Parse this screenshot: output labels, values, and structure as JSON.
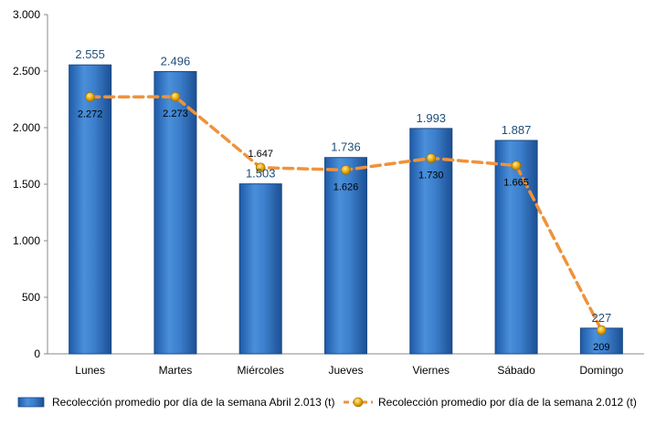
{
  "chart_data": {
    "type": "bar",
    "categories": [
      "Lunes",
      "Martes",
      "Miércoles",
      "Jueves",
      "Viernes",
      "Sábado",
      "Domingo"
    ],
    "series": [
      {
        "name": "Recolección promedio por día de la semana Abril 2.013 (t)",
        "type": "bar",
        "values": [
          2555,
          2496,
          1503,
          1736,
          1993,
          1887,
          227
        ],
        "labels": [
          "2.555",
          "2.496",
          "1.503",
          "1.736",
          "1.993",
          "1.887",
          "227"
        ],
        "color": "#2E75B6"
      },
      {
        "name": "Recolección promedio por día de la semana 2.012 (t)",
        "type": "line",
        "values": [
          2272,
          2273,
          1647,
          1626,
          1730,
          1665,
          209
        ],
        "labels": [
          "2.272",
          "2.273",
          "1.647",
          "1.626",
          "1.730",
          "1.665",
          "209"
        ],
        "color": "#F0923A",
        "marker_color": "#F4B400"
      }
    ],
    "ylim": [
      0,
      3000
    ],
    "yticks": [
      0,
      500,
      1000,
      1500,
      2000,
      2500,
      3000
    ],
    "ytick_labels": [
      "0",
      "500",
      "1.000",
      "1.500",
      "2.000",
      "2.500",
      "3.000"
    ],
    "grid": false,
    "legend_position": "bottom",
    "title": "",
    "xlabel": "",
    "ylabel": ""
  }
}
